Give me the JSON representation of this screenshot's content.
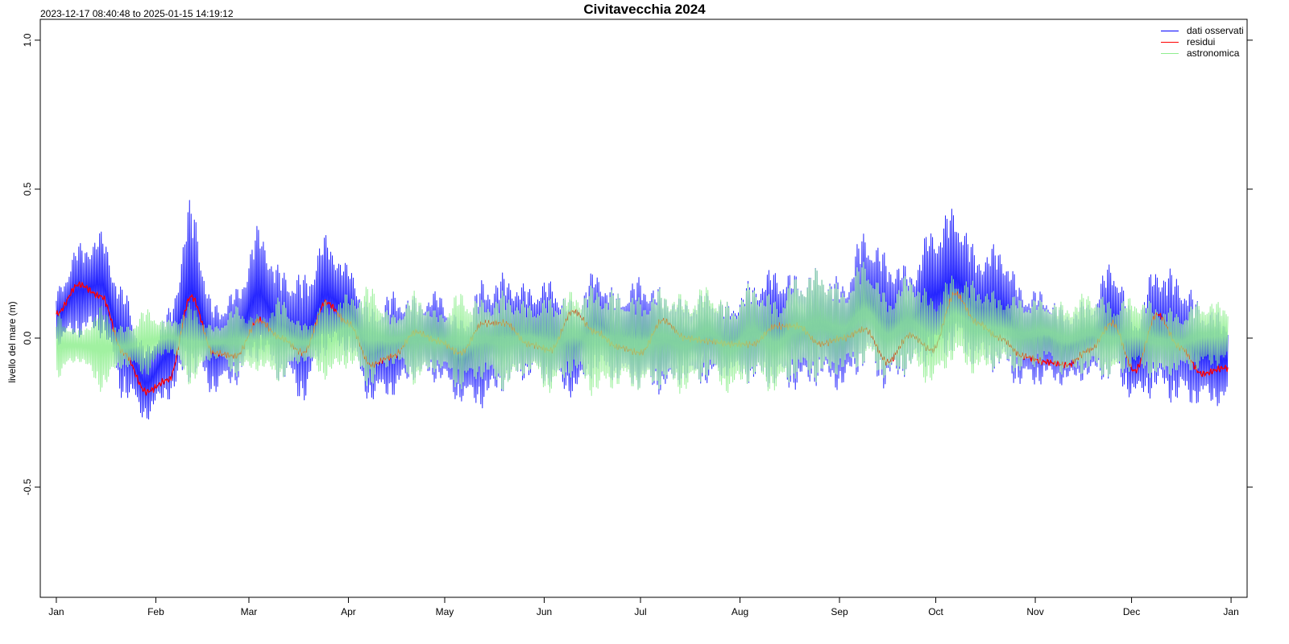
{
  "chart_data": {
    "type": "line",
    "title": "Civitavecchia 2024",
    "subtitle": "2023-12-17 08:40:48 to 2025-01-15 14:19:12",
    "ylabel": "livello del mare (m)",
    "xlabel": "",
    "ylim": [
      -0.87,
      1.07
    ],
    "yticks": [
      "-0.5",
      "0.0",
      "0.5",
      "1.0"
    ],
    "xlim": [
      "2023-12-27",
      "2025-01-06"
    ],
    "x_tick_labels": [
      "Jan",
      "Feb",
      "Mar",
      "Apr",
      "May",
      "Jun",
      "Jul",
      "Aug",
      "Sep",
      "Oct",
      "Nov",
      "Dec",
      "Jan"
    ],
    "x_tick_dates": [
      "2024-01-01",
      "2024-02-01",
      "2024-03-01",
      "2024-04-01",
      "2024-05-01",
      "2024-06-01",
      "2024-07-01",
      "2024-08-01",
      "2024-09-01",
      "2024-10-01",
      "2024-11-01",
      "2024-12-01",
      "2025-01-01"
    ],
    "grid": false,
    "legend_position": "top-right",
    "series": [
      {
        "name": "dati osservati",
        "color": "#0000ff",
        "dates": [
          "2024-01-01",
          "2024-01-08",
          "2024-01-15",
          "2024-01-22",
          "2024-01-29",
          "2024-02-05",
          "2024-02-12",
          "2024-02-19",
          "2024-02-26",
          "2024-03-04",
          "2024-03-11",
          "2024-03-18",
          "2024-03-25",
          "2024-04-01",
          "2024-04-08",
          "2024-04-15",
          "2024-04-22",
          "2024-04-29",
          "2024-05-06",
          "2024-05-13",
          "2024-05-20",
          "2024-05-27",
          "2024-06-03",
          "2024-06-10",
          "2024-06-17",
          "2024-06-24",
          "2024-07-01",
          "2024-07-08",
          "2024-07-15",
          "2024-07-22",
          "2024-07-29",
          "2024-08-05",
          "2024-08-12",
          "2024-08-19",
          "2024-08-26",
          "2024-09-02",
          "2024-09-09",
          "2024-09-16",
          "2024-09-23",
          "2024-09-30",
          "2024-10-07",
          "2024-10-14",
          "2024-10-21",
          "2024-10-28",
          "2024-11-04",
          "2024-11-11",
          "2024-11-18",
          "2024-11-25",
          "2024-12-02",
          "2024-12-09",
          "2024-12-16",
          "2024-12-23",
          "2024-12-30"
        ],
        "max": [
          0.17,
          0.32,
          0.36,
          0.17,
          -0.02,
          0.1,
          0.47,
          0.12,
          0.17,
          0.38,
          0.24,
          0.22,
          0.35,
          0.25,
          0.11,
          0.16,
          0.14,
          0.16,
          0.07,
          0.2,
          0.22,
          0.18,
          0.2,
          0.13,
          0.23,
          0.16,
          0.21,
          0.17,
          0.13,
          0.16,
          0.12,
          0.2,
          0.24,
          0.22,
          0.24,
          0.2,
          0.37,
          0.29,
          0.24,
          0.38,
          0.45,
          0.3,
          0.32,
          0.18,
          0.16,
          0.1,
          0.13,
          0.27,
          0.08,
          0.26,
          0.22,
          0.12,
          0.08
        ],
        "min": [
          -0.03,
          0.0,
          0.0,
          -0.21,
          -0.28,
          -0.21,
          -0.15,
          -0.19,
          -0.16,
          -0.08,
          -0.15,
          -0.22,
          -0.06,
          -0.06,
          -0.22,
          -0.2,
          -0.14,
          -0.15,
          -0.22,
          -0.24,
          -0.18,
          -0.14,
          -0.17,
          -0.2,
          -0.13,
          -0.15,
          -0.18,
          -0.19,
          -0.15,
          -0.16,
          -0.13,
          -0.16,
          -0.17,
          -0.18,
          -0.16,
          -0.18,
          -0.11,
          -0.18,
          -0.12,
          -0.09,
          -0.06,
          -0.1,
          -0.12,
          -0.17,
          -0.16,
          -0.16,
          -0.14,
          -0.15,
          -0.21,
          -0.2,
          -0.23,
          -0.23,
          -0.23
        ]
      },
      {
        "name": "residui",
        "color": "#ff0000",
        "dates": [
          "2024-01-01",
          "2024-01-08",
          "2024-01-15",
          "2024-01-22",
          "2024-01-29",
          "2024-02-05",
          "2024-02-12",
          "2024-02-19",
          "2024-02-26",
          "2024-03-04",
          "2024-03-11",
          "2024-03-18",
          "2024-03-25",
          "2024-04-01",
          "2024-04-08",
          "2024-04-15",
          "2024-04-22",
          "2024-04-29",
          "2024-05-06",
          "2024-05-13",
          "2024-05-20",
          "2024-05-27",
          "2024-06-03",
          "2024-06-10",
          "2024-06-17",
          "2024-06-24",
          "2024-07-01",
          "2024-07-08",
          "2024-07-15",
          "2024-07-22",
          "2024-07-29",
          "2024-08-05",
          "2024-08-12",
          "2024-08-19",
          "2024-08-26",
          "2024-09-02",
          "2024-09-09",
          "2024-09-16",
          "2024-09-23",
          "2024-09-30",
          "2024-10-07",
          "2024-10-14",
          "2024-10-21",
          "2024-10-28",
          "2024-11-04",
          "2024-11-11",
          "2024-11-18",
          "2024-11-25",
          "2024-12-02",
          "2024-12-09",
          "2024-12-16",
          "2024-12-23",
          "2024-12-30"
        ],
        "values": [
          0.08,
          0.18,
          0.14,
          -0.05,
          -0.18,
          -0.14,
          0.14,
          -0.05,
          -0.06,
          0.06,
          0.0,
          -0.05,
          0.12,
          0.05,
          -0.09,
          -0.06,
          0.02,
          -0.01,
          -0.05,
          0.05,
          0.05,
          -0.02,
          -0.04,
          0.09,
          0.02,
          -0.03,
          -0.05,
          0.06,
          0.0,
          -0.01,
          -0.02,
          -0.02,
          0.04,
          0.04,
          -0.02,
          0.0,
          0.03,
          -0.08,
          0.01,
          -0.04,
          0.15,
          0.05,
          0.0,
          -0.06,
          -0.08,
          -0.09,
          -0.04,
          0.05,
          -0.11,
          0.08,
          -0.03,
          -0.12,
          -0.1
        ]
      },
      {
        "name": "astronomica",
        "color": "#90ee90",
        "dates": [
          "2024-01-01",
          "2024-01-08",
          "2024-01-15",
          "2024-01-22",
          "2024-01-29",
          "2024-02-05",
          "2024-02-12",
          "2024-02-19",
          "2024-02-26",
          "2024-03-04",
          "2024-03-11",
          "2024-03-18",
          "2024-03-25",
          "2024-04-01",
          "2024-04-08",
          "2024-04-15",
          "2024-04-22",
          "2024-04-29",
          "2024-05-06",
          "2024-05-13",
          "2024-05-20",
          "2024-05-27",
          "2024-06-03",
          "2024-06-10",
          "2024-06-17",
          "2024-06-24",
          "2024-07-01",
          "2024-07-08",
          "2024-07-15",
          "2024-07-22",
          "2024-07-29",
          "2024-08-05",
          "2024-08-12",
          "2024-08-19",
          "2024-08-26",
          "2024-09-02",
          "2024-09-09",
          "2024-09-16",
          "2024-09-23",
          "2024-09-30",
          "2024-10-07",
          "2024-10-14",
          "2024-10-21",
          "2024-10-28",
          "2024-11-04",
          "2024-11-11",
          "2024-11-18",
          "2024-11-25",
          "2024-12-02",
          "2024-12-09",
          "2024-12-16",
          "2024-12-23",
          "2024-12-30"
        ],
        "max": [
          0.09,
          0.03,
          0.11,
          0.04,
          0.1,
          0.06,
          0.12,
          0.04,
          0.11,
          0.08,
          0.14,
          0.05,
          0.13,
          0.15,
          0.18,
          0.08,
          0.16,
          0.09,
          0.16,
          0.13,
          0.16,
          0.12,
          0.14,
          0.16,
          0.18,
          0.16,
          0.14,
          0.17,
          0.15,
          0.18,
          0.12,
          0.19,
          0.14,
          0.21,
          0.24,
          0.17,
          0.27,
          0.15,
          0.22,
          0.15,
          0.22,
          0.19,
          0.15,
          0.14,
          0.13,
          0.12,
          0.16,
          0.13,
          0.14,
          0.12,
          0.09,
          0.13,
          0.12
        ],
        "min": [
          -0.14,
          -0.08,
          -0.18,
          -0.1,
          -0.13,
          -0.05,
          -0.16,
          -0.07,
          -0.13,
          -0.11,
          -0.15,
          -0.08,
          -0.14,
          -0.1,
          -0.17,
          -0.09,
          -0.16,
          -0.11,
          -0.18,
          -0.14,
          -0.18,
          -0.12,
          -0.19,
          -0.13,
          -0.2,
          -0.17,
          -0.18,
          -0.17,
          -0.19,
          -0.14,
          -0.19,
          -0.15,
          -0.19,
          -0.14,
          -0.15,
          -0.12,
          -0.1,
          -0.14,
          -0.12,
          -0.16,
          -0.08,
          -0.13,
          -0.1,
          -0.12,
          -0.09,
          -0.13,
          -0.12,
          -0.14,
          -0.11,
          -0.14,
          -0.12,
          -0.11,
          -0.09
        ]
      }
    ]
  }
}
